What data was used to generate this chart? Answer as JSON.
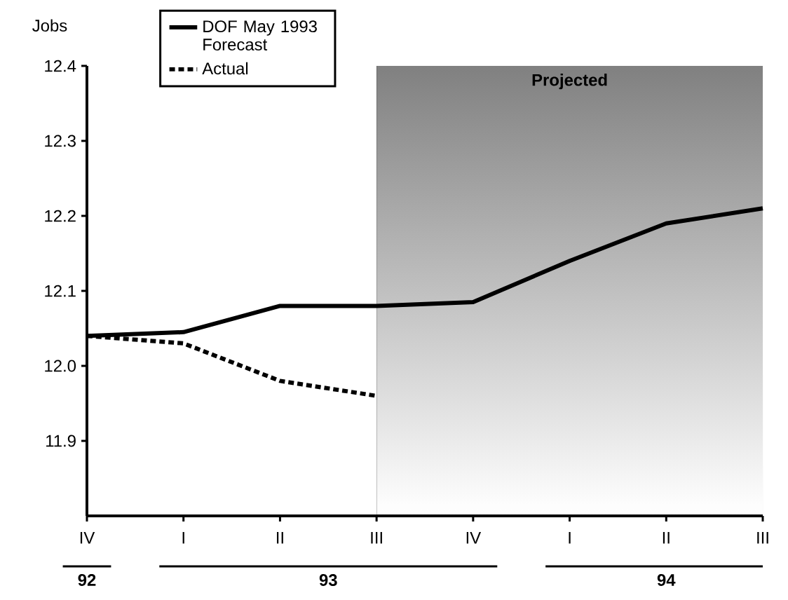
{
  "chart_data": {
    "type": "line",
    "ylabel": "Jobs",
    "categories": [
      "IV",
      "I",
      "II",
      "III",
      "IV",
      "I",
      "II",
      "III"
    ],
    "series": [
      {
        "name": "DOF May 1993 Forecast",
        "color": "#000000",
        "line_style": "solid",
        "values": [
          12.04,
          12.045,
          12.08,
          12.08,
          12.085,
          12.14,
          12.19,
          12.21
        ]
      },
      {
        "name": "Actual",
        "color": "#000000",
        "line_style": "dotted",
        "values": [
          12.04,
          12.03,
          11.98,
          11.96,
          null,
          null,
          null,
          null
        ]
      }
    ],
    "ylim": [
      11.8,
      12.4
    ],
    "yticks": [
      11.9,
      {
        "value": 12.0,
        "label": "12.0"
      },
      12.1,
      12.2,
      12.3,
      12.4
    ],
    "annotations": [
      "Projected",
      "92",
      "93",
      "94"
    ],
    "legend": "top left",
    "marker": "none",
    "grid": false
  }
}
